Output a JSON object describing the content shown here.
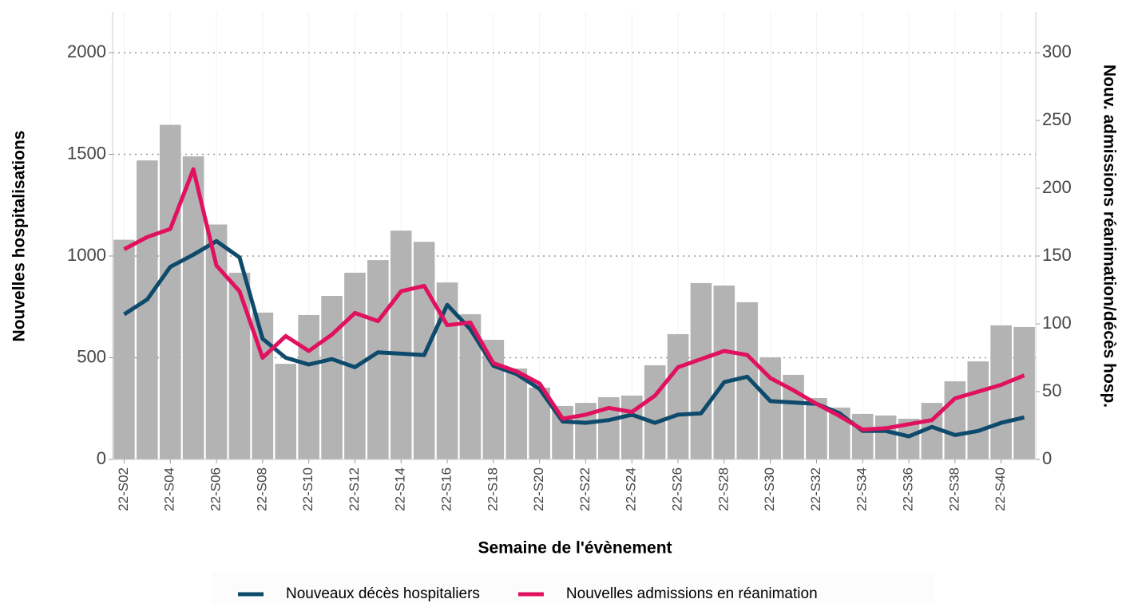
{
  "chart_data": {
    "type": "bar-line",
    "x_label": "Semaine de l'évènement",
    "y_label": "Nouvelles hospitalisations",
    "y2_label": "Nouv. admissions réanimation/décès hosp.",
    "categories": [
      "22-S02",
      null,
      "22-S04",
      null,
      "22-S06",
      null,
      "22-S08",
      null,
      "22-S10",
      null,
      "22-S12",
      null,
      "22-S14",
      null,
      "22-S16",
      null,
      "22-S18",
      null,
      "22-S20",
      null,
      "22-S22",
      null,
      "22-S24",
      null,
      "22-S26",
      null,
      "22-S28",
      null,
      "22-S30",
      null,
      "22-S32",
      null,
      "22-S34",
      null,
      "22-S36",
      null,
      "22-S38",
      null,
      "22-S40",
      null
    ],
    "series": [
      {
        "type": "bar",
        "color": "#b3b3b3",
        "values": [
          1080,
          1470,
          1645,
          1490,
          1155,
          918,
          722,
          470,
          710,
          804,
          918,
          980,
          1125,
          1070,
          870,
          714,
          588,
          447,
          353,
          263,
          278,
          306,
          314,
          463,
          616,
          867,
          855,
          773,
          502,
          416,
          302,
          255,
          224,
          216,
          200,
          278,
          384,
          482,
          659,
          651
        ]
      },
      {
        "type": "line",
        "axis": "y2",
        "name": "Nouveaux décès hospitaliers",
        "color": "#0d4a6b",
        "values": [
          107,
          118,
          142,
          151,
          161,
          149,
          89,
          75,
          70,
          74,
          68,
          79,
          78,
          77,
          114,
          96,
          69,
          63,
          52,
          28,
          27,
          29,
          33,
          27,
          33,
          34,
          57,
          61,
          43,
          42,
          41,
          34,
          21,
          21,
          17,
          24,
          18,
          21,
          27,
          31
        ]
      },
      {
        "type": "line",
        "axis": "y2",
        "name": "Nouvelles admissions en réanimation",
        "color": "#e0115f",
        "values": [
          155,
          164,
          170,
          214,
          143,
          124,
          75,
          91,
          80,
          92,
          108,
          102,
          124,
          128,
          99,
          101,
          71,
          65,
          56,
          30,
          33,
          38,
          35,
          47,
          68,
          74,
          80,
          77,
          60,
          51,
          41,
          32,
          22,
          23,
          26,
          29,
          45,
          50,
          55,
          62
        ]
      }
    ],
    "ylim": [
      0,
      2200
    ],
    "yticks": [
      0,
      500,
      1000,
      1500,
      2000
    ],
    "y2lim": [
      0,
      330
    ],
    "y2ticks": [
      0,
      50,
      100,
      150,
      200,
      250,
      300
    ],
    "grid": true
  }
}
